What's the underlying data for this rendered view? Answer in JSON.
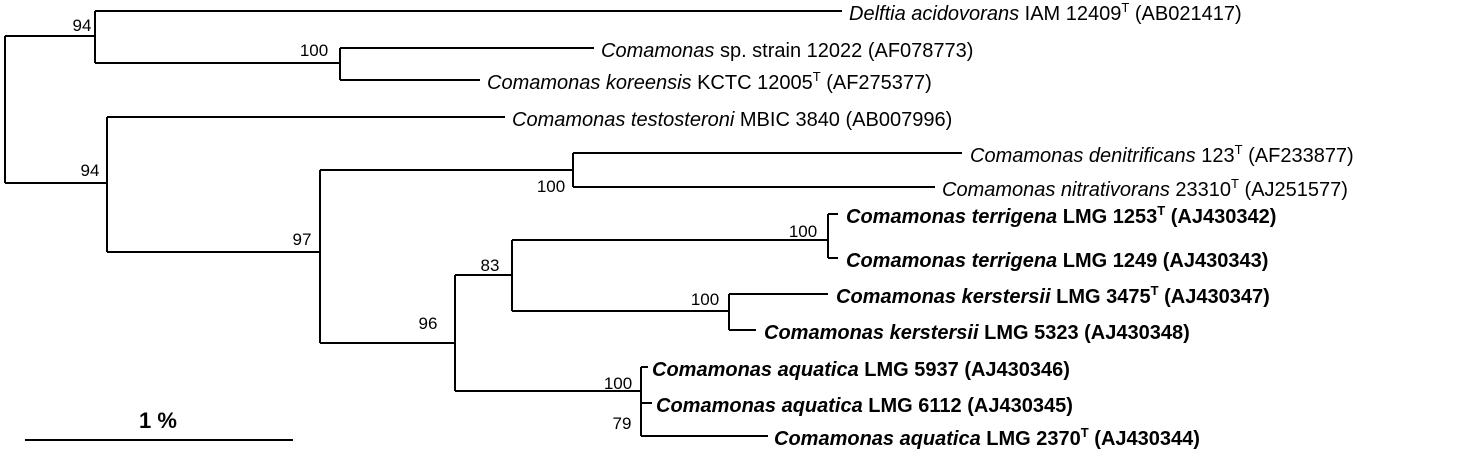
{
  "scale_bar": {
    "label": "1 %"
  },
  "bootstrap": {
    "b94_top": "94",
    "b100_koreensis": "100",
    "b94_lower": "94",
    "b97": "97",
    "b100_denitr": "100",
    "b96": "96",
    "b83": "83",
    "b100_terrigena": "100",
    "b100_kerstersii": "100",
    "b100_aquatica": "100",
    "b79": "79"
  },
  "taxa": [
    {
      "id": "delftia",
      "genus": "Delftia acidovorans",
      "rest": " IAM 12409",
      "sup": "T",
      "acc": " (AB021417)",
      "bold": false
    },
    {
      "id": "sp12022",
      "genus": "Comamonas",
      "rest": " sp. strain 12022 (AF078773)",
      "sup": "",
      "acc": "",
      "bold": false
    },
    {
      "id": "koreensis",
      "genus": "Comamonas koreensis",
      "rest": " KCTC 12005",
      "sup": "T",
      "acc": " (AF275377)",
      "bold": false
    },
    {
      "id": "testosteroni",
      "genus": "Comamonas testosteroni",
      "rest": " MBIC 3840 (AB007996)",
      "sup": "",
      "acc": "",
      "bold": false
    },
    {
      "id": "denitrificans",
      "genus": "Comamonas denitrificans",
      "rest": " 123",
      "sup": "T",
      "acc": " (AF233877)",
      "bold": false
    },
    {
      "id": "nitrativorans",
      "genus": "Comamonas nitrativorans",
      "rest": " 23310",
      "sup": "T",
      "acc": " (AJ251577)",
      "bold": false
    },
    {
      "id": "terrigena1253",
      "genus": "Comamonas terrigena",
      "rest": " LMG 1253",
      "sup": "T",
      "acc": " (AJ430342)",
      "bold": true
    },
    {
      "id": "terrigena1249",
      "genus": "Comamonas terrigena",
      "rest": " LMG 1249 (AJ430343)",
      "sup": "",
      "acc": "",
      "bold": true
    },
    {
      "id": "kerstersii3475",
      "genus": "Comamonas kerstersii",
      "rest": " LMG 3475",
      "sup": "T",
      "acc": " (AJ430347)",
      "bold": true
    },
    {
      "id": "kerstersii5323",
      "genus": "Comamonas kerstersii",
      "rest": " LMG 5323 (AJ430348)",
      "sup": "",
      "acc": "",
      "bold": true
    },
    {
      "id": "aquatica5937",
      "genus": "Comamonas aquatica",
      "rest": " LMG 5937 (AJ430346)",
      "sup": "",
      "acc": "",
      "bold": true
    },
    {
      "id": "aquatica6112",
      "genus": "Comamonas aquatica",
      "rest": " LMG 6112 (AJ430345)",
      "sup": "",
      "acc": "",
      "bold": true
    },
    {
      "id": "aquatica2370",
      "genus": "Comamonas aquatica",
      "rest": " LMG 2370",
      "sup": "T",
      "acc": " (AJ430344)",
      "bold": true
    }
  ]
}
